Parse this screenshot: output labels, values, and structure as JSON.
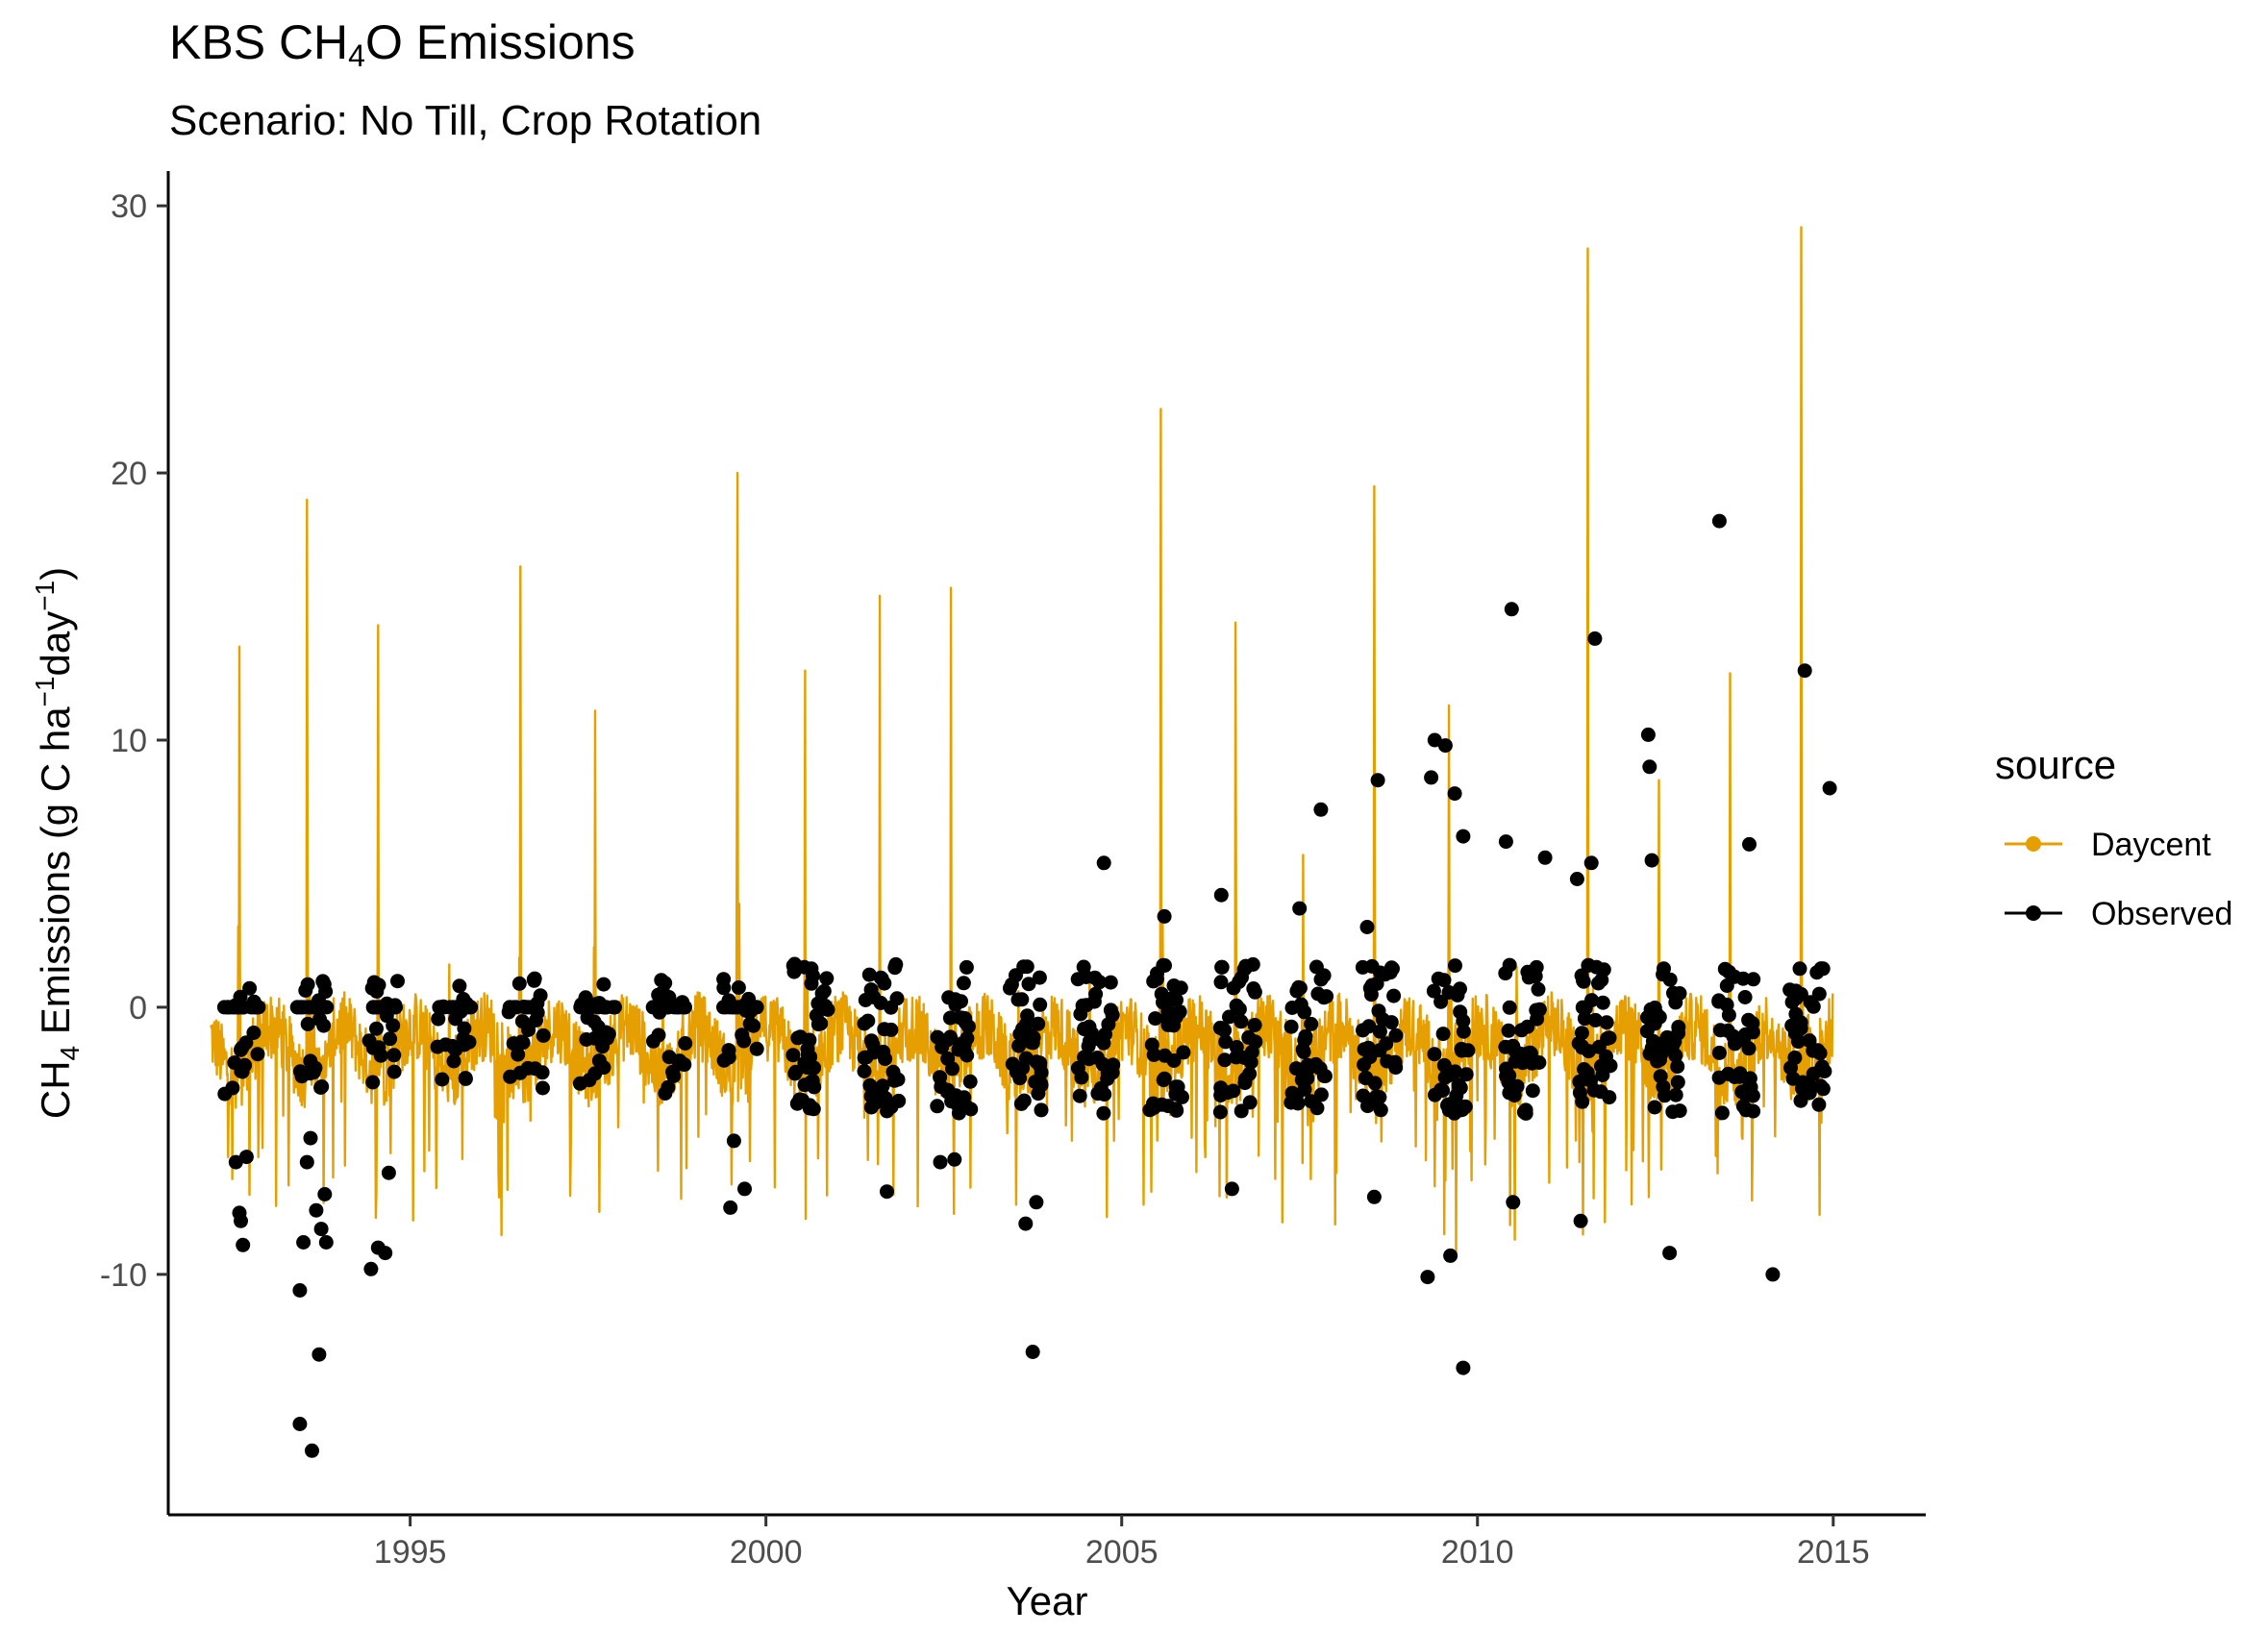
{
  "chart_data": {
    "type": "line",
    "title_main": "KBS CH",
    "title_sub": "4",
    "title_tail": "O Emissions",
    "subtitle": "Scenario: No Till, Crop Rotation",
    "xlabel": "Year",
    "ylabel_main": "CH",
    "ylabel_sub": "4",
    "ylabel_tail": " Emissions (g C ha",
    "ylabel_sup1": "−1",
    "ylabel_mid": "day",
    "ylabel_sup2": "−1",
    "ylabel_close": ")",
    "xlim": [
      1991.6,
      2016.3
    ],
    "ylim": [
      -19.0,
      31.3
    ],
    "x_ticks": [
      1995,
      2000,
      2005,
      2010,
      2015
    ],
    "x_tick_labels": [
      "1995",
      "2000",
      "2005",
      "2010",
      "2015"
    ],
    "y_ticks": [
      -10,
      0,
      10,
      20,
      30
    ],
    "y_tick_labels": [
      "-10",
      "0",
      "10",
      "20",
      "30"
    ],
    "grid": false,
    "legend": {
      "title": "source",
      "position": "right",
      "entries": [
        {
          "label": "Daycent",
          "color": "#E69F00"
        },
        {
          "label": "Observed",
          "color": "#000000"
        }
      ]
    },
    "series": [
      {
        "name": "Daycent",
        "kind": "line",
        "color": "#E69F00",
        "peaks": [
          {
            "year": 1992.6,
            "peak": 13.5
          },
          {
            "year": 1993.55,
            "peak": 19.0
          },
          {
            "year": 1994.55,
            "peak": 14.3
          },
          {
            "year": 1995.55,
            "peak": 1.6
          },
          {
            "year": 1996.55,
            "peak": 16.5
          },
          {
            "year": 1997.6,
            "peak": 11.1
          },
          {
            "year": 1998.55,
            "peak": 0.8
          },
          {
            "year": 1999.6,
            "peak": 20.0
          },
          {
            "year": 2000.55,
            "peak": 12.6
          },
          {
            "year": 2001.6,
            "peak": 15.4
          },
          {
            "year": 2002.6,
            "peak": 15.7
          },
          {
            "year": 2003.55,
            "peak": 0.6
          },
          {
            "year": 2004.55,
            "peak": 1.2
          },
          {
            "year": 2005.55,
            "peak": 22.4
          },
          {
            "year": 2006.6,
            "peak": 14.4
          },
          {
            "year": 2007.55,
            "peak": 5.7
          },
          {
            "year": 2008.55,
            "peak": 19.5
          },
          {
            "year": 2009.6,
            "peak": 11.3
          },
          {
            "year": 2010.55,
            "peak": 1.5
          },
          {
            "year": 2011.55,
            "peak": 28.4
          },
          {
            "year": 2012.55,
            "peak": 8.5
          },
          {
            "year": 2013.55,
            "peak": 12.5
          },
          {
            "year": 2014.55,
            "peak": 29.2
          }
        ]
      },
      {
        "name": "Observed",
        "kind": "points",
        "color": "#000000",
        "points": [
          [
            1992.55,
            -5.8
          ],
          [
            1992.6,
            -7.7
          ],
          [
            1992.62,
            -8.0
          ],
          [
            1992.65,
            -8.9
          ],
          [
            1992.7,
            -5.6
          ],
          [
            1993.45,
            -10.6
          ],
          [
            1993.45,
            -15.6
          ],
          [
            1993.5,
            -8.8
          ],
          [
            1993.55,
            -5.8
          ],
          [
            1993.6,
            -4.9
          ],
          [
            1993.62,
            -16.6
          ],
          [
            1993.68,
            -7.6
          ],
          [
            1993.72,
            -13.0
          ],
          [
            1993.75,
            -8.3
          ],
          [
            1993.8,
            -7.0
          ],
          [
            1993.82,
            -8.8
          ],
          [
            1994.45,
            -9.8
          ],
          [
            1994.55,
            -9.0
          ],
          [
            1994.65,
            -9.2
          ],
          [
            1994.7,
            -6.2
          ],
          [
            1999.5,
            -7.5
          ],
          [
            1999.55,
            -5.0
          ],
          [
            1999.7,
            -6.8
          ],
          [
            2001.7,
            -6.9
          ],
          [
            2002.45,
            -5.8
          ],
          [
            2002.65,
            -5.7
          ],
          [
            2003.65,
            -8.1
          ],
          [
            2003.75,
            -12.9
          ],
          [
            2003.8,
            -7.3
          ],
          [
            2004.75,
            5.4
          ],
          [
            2005.6,
            3.4
          ],
          [
            2006.4,
            4.2
          ],
          [
            2006.55,
            -6.8
          ],
          [
            2007.5,
            3.7
          ],
          [
            2007.8,
            7.4
          ],
          [
            2008.45,
            3.0
          ],
          [
            2008.55,
            -7.1
          ],
          [
            2008.6,
            8.5
          ],
          [
            2009.3,
            -10.1
          ],
          [
            2009.35,
            8.6
          ],
          [
            2009.4,
            10.0
          ],
          [
            2009.55,
            9.8
          ],
          [
            2009.62,
            -9.3
          ],
          [
            2009.68,
            8.0
          ],
          [
            2009.8,
            6.4
          ],
          [
            2009.8,
            -13.5
          ],
          [
            2010.4,
            6.2
          ],
          [
            2010.48,
            14.9
          ],
          [
            2010.5,
            -7.3
          ],
          [
            2010.95,
            5.6
          ],
          [
            2011.4,
            4.8
          ],
          [
            2011.45,
            -8.0
          ],
          [
            2011.6,
            5.4
          ],
          [
            2011.65,
            13.8
          ],
          [
            2012.4,
            10.2
          ],
          [
            2012.42,
            9.0
          ],
          [
            2012.45,
            5.5
          ],
          [
            2012.7,
            -9.2
          ],
          [
            2013.4,
            18.2
          ],
          [
            2013.82,
            6.1
          ],
          [
            2014.15,
            -10.0
          ],
          [
            2014.6,
            12.6
          ],
          [
            2014.95,
            8.2
          ]
        ]
      }
    ]
  }
}
